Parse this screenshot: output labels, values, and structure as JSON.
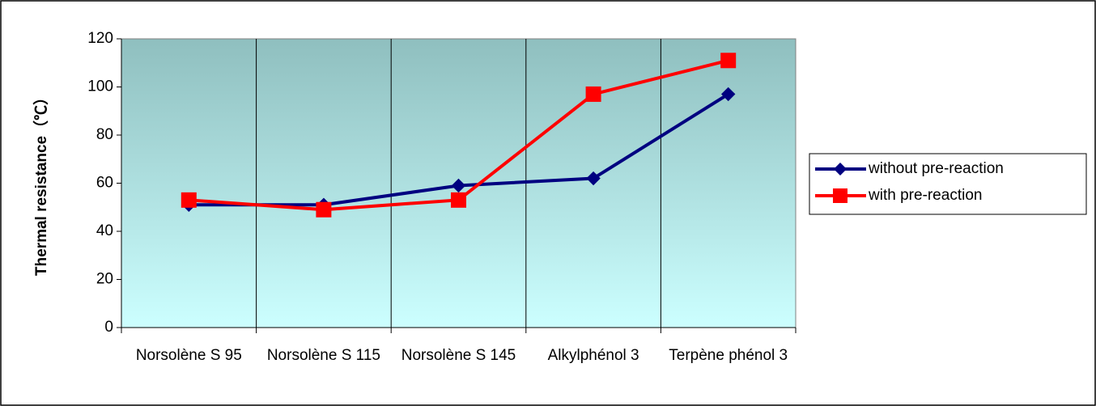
{
  "chart_data": {
    "type": "line",
    "y_label": "Thermal resistance（℃）",
    "categories": [
      "Norsolène S 95",
      "Norsolène S 115",
      "Norsolène S 145",
      "Alkylphénol 3",
      "Terpène phénol 3"
    ],
    "series": [
      {
        "name": "without  pre-reaction",
        "color": "#000080",
        "marker": "diamond",
        "values": [
          51,
          51,
          59,
          62,
          97
        ]
      },
      {
        "name": "with  pre-reaction",
        "color": "#ff0000",
        "marker": "square",
        "values": [
          53,
          49,
          53,
          97,
          111
        ]
      }
    ],
    "ylim": [
      0,
      120
    ],
    "yticks": [
      0,
      20,
      40,
      60,
      80,
      100,
      120
    ],
    "legend": "right"
  }
}
